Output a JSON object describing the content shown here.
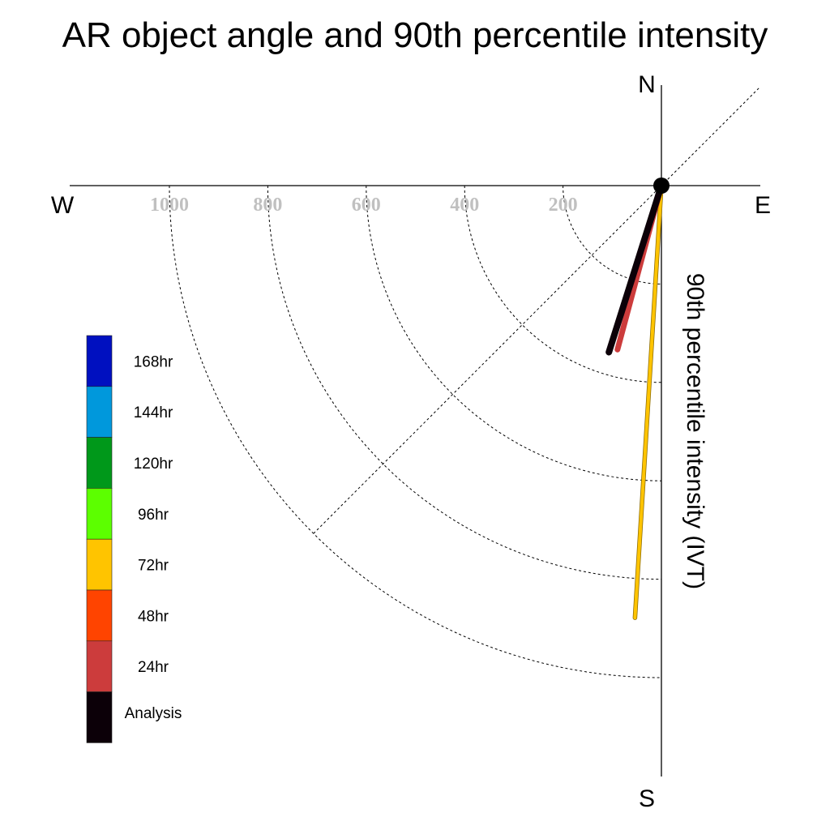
{
  "chart_data": {
    "type": "polar-vector",
    "title": "AR object angle and 90th percentile intensity",
    "ylabel": "90th percentile intensity (IVT)",
    "directions": {
      "north": "N",
      "south": "S",
      "east": "E",
      "west": "W"
    },
    "radial_ticks": [
      200,
      400,
      600,
      800,
      1000
    ],
    "radial_max": 1000,
    "grid": "dashed",
    "legend_position": "left",
    "legend": [
      {
        "label": "168hr",
        "color": "#0010c0"
      },
      {
        "label": "144hr",
        "color": "#0098dc"
      },
      {
        "label": "120hr",
        "color": "#00981a"
      },
      {
        "label": "96hr",
        "color": "#5cff00"
      },
      {
        "label": "72hr",
        "color": "#ffc400"
      },
      {
        "label": "48hr",
        "color": "#ff4400"
      },
      {
        "label": "24hr",
        "color": "#cc3c3c"
      },
      {
        "label": "Analysis",
        "color": "#0c0008"
      }
    ],
    "series": [
      {
        "name": "72hr",
        "angle_deg": 183.5,
        "intensity": 880,
        "color": "#ffc400"
      },
      {
        "name": "24hr",
        "angle_deg": 195,
        "intensity": 345,
        "color": "#cc3c3c"
      },
      {
        "name": "Analysis",
        "angle_deg": 197.5,
        "intensity": 355,
        "color": "#0c0008"
      }
    ]
  }
}
